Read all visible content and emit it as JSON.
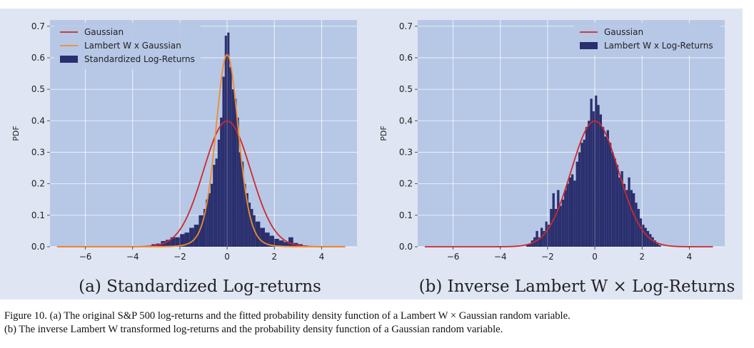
{
  "chart_data": [
    {
      "type": "histogram",
      "panel_label": "(a)",
      "subcaption": "Standardized Log-returns",
      "ylabel": "PDF",
      "xlabel": "",
      "xlim": [
        -7.5,
        5.5
      ],
      "ylim": [
        0,
        0.72
      ],
      "xticks": [
        -6,
        -4,
        -2,
        0,
        2,
        4
      ],
      "xtick_labels": [
        "−6",
        "−4",
        "−2",
        "0",
        "2",
        "4"
      ],
      "yticks": [
        0.0,
        0.1,
        0.2,
        0.3,
        0.4,
        0.5,
        0.6,
        0.7
      ],
      "ytick_labels": [
        "0.0",
        "0.1",
        "0.2",
        "0.3",
        "0.4",
        "0.5",
        "0.6",
        "0.7"
      ],
      "grid": true,
      "legend_position": "top-left",
      "series": [
        {
          "name": "Gaussian",
          "type": "line",
          "color": "#cc2a2a",
          "distribution": "normal",
          "mean": 0,
          "std": 1,
          "x_range": [
            -7.2,
            5.0
          ]
        },
        {
          "name": "Lambert W x Gaussian",
          "type": "line",
          "color": "#f28c28",
          "distribution": "lambert_w_gaussian",
          "peak": 0.61,
          "delta": 0.21,
          "x_range": [
            -7.2,
            5.0
          ]
        },
        {
          "name": "Standardized Log-Returns",
          "type": "histogram",
          "color": "#2a2f6e",
          "bins": [
            [
              -7.2,
              0.0
            ],
            [
              -3.8,
              0.002
            ],
            [
              -3.2,
              0.008
            ],
            [
              -3.0,
              0.01
            ],
            [
              -2.8,
              0.018
            ],
            [
              -2.6,
              0.022
            ],
            [
              -2.4,
              0.03
            ],
            [
              -2.2,
              0.03
            ],
            [
              -2.0,
              0.04
            ],
            [
              -1.8,
              0.045
            ],
            [
              -1.6,
              0.06
            ],
            [
              -1.4,
              0.07
            ],
            [
              -1.2,
              0.1
            ],
            [
              -1.0,
              0.12
            ],
            [
              -0.9,
              0.15
            ],
            [
              -0.8,
              0.17
            ],
            [
              -0.7,
              0.2
            ],
            [
              -0.6,
              0.26
            ],
            [
              -0.5,
              0.28
            ],
            [
              -0.4,
              0.34
            ],
            [
              -0.3,
              0.41
            ],
            [
              -0.2,
              0.54
            ],
            [
              -0.1,
              0.67
            ],
            [
              0.0,
              0.68
            ],
            [
              0.1,
              0.57
            ],
            [
              0.2,
              0.5
            ],
            [
              0.3,
              0.47
            ],
            [
              0.4,
              0.41
            ],
            [
              0.5,
              0.3
            ],
            [
              0.6,
              0.27
            ],
            [
              0.7,
              0.2
            ],
            [
              0.8,
              0.17
            ],
            [
              0.9,
              0.14
            ],
            [
              1.0,
              0.12
            ],
            [
              1.1,
              0.1
            ],
            [
              1.2,
              0.08
            ],
            [
              1.4,
              0.06
            ],
            [
              1.6,
              0.045
            ],
            [
              1.8,
              0.035
            ],
            [
              2.0,
              0.025
            ],
            [
              2.2,
              0.02
            ],
            [
              2.4,
              0.015
            ],
            [
              2.6,
              0.03
            ],
            [
              2.8,
              0.012
            ],
            [
              3.0,
              0.008
            ],
            [
              3.2,
              0.004
            ],
            [
              3.4,
              0.002
            ],
            [
              3.6,
              0.0
            ]
          ]
        }
      ]
    },
    {
      "type": "histogram",
      "panel_label": "(b)",
      "subcaption": "Inverse Lambert W × Log-Returns",
      "ylabel": "PDF",
      "xlabel": "",
      "xlim": [
        -7.5,
        5.5
      ],
      "ylim": [
        0,
        0.72
      ],
      "xticks": [
        -6,
        -4,
        -2,
        0,
        2,
        4
      ],
      "xtick_labels": [
        "−6",
        "−4",
        "−2",
        "0",
        "2",
        "4"
      ],
      "yticks": [
        0.0,
        0.1,
        0.2,
        0.3,
        0.4,
        0.5,
        0.6,
        0.7
      ],
      "ytick_labels": [
        "0.0",
        "0.1",
        "0.2",
        "0.3",
        "0.4",
        "0.5",
        "0.6",
        "0.7"
      ],
      "grid": true,
      "legend_position": "top-right",
      "series": [
        {
          "name": "Gaussian",
          "type": "line",
          "color": "#cc2a2a",
          "distribution": "normal",
          "mean": 0,
          "std": 1,
          "x_range": [
            -7.2,
            5.0
          ]
        },
        {
          "name": "Lambert W x Log-Returns",
          "type": "histogram",
          "color": "#2a2f6e",
          "bins": [
            [
              -2.9,
              0.008
            ],
            [
              -2.8,
              0.01
            ],
            [
              -2.7,
              0.02
            ],
            [
              -2.6,
              0.03
            ],
            [
              -2.5,
              0.05
            ],
            [
              -2.4,
              0.03
            ],
            [
              -2.3,
              0.06
            ],
            [
              -2.2,
              0.05
            ],
            [
              -2.1,
              0.08
            ],
            [
              -2.0,
              0.07
            ],
            [
              -1.9,
              0.12
            ],
            [
              -1.8,
              0.17
            ],
            [
              -1.7,
              0.12
            ],
            [
              -1.6,
              0.18
            ],
            [
              -1.5,
              0.13
            ],
            [
              -1.4,
              0.15
            ],
            [
              -1.3,
              0.18
            ],
            [
              -1.2,
              0.2
            ],
            [
              -1.1,
              0.22
            ],
            [
              -1.0,
              0.23
            ],
            [
              -0.9,
              0.21
            ],
            [
              -0.8,
              0.27
            ],
            [
              -0.7,
              0.3
            ],
            [
              -0.6,
              0.33
            ],
            [
              -0.5,
              0.34
            ],
            [
              -0.4,
              0.38
            ],
            [
              -0.3,
              0.4
            ],
            [
              -0.2,
              0.47
            ],
            [
              -0.1,
              0.43
            ],
            [
              0.0,
              0.48
            ],
            [
              0.1,
              0.45
            ],
            [
              0.2,
              0.42
            ],
            [
              0.3,
              0.38
            ],
            [
              0.4,
              0.35
            ],
            [
              0.5,
              0.37
            ],
            [
              0.6,
              0.33
            ],
            [
              0.7,
              0.3
            ],
            [
              0.8,
              0.28
            ],
            [
              0.9,
              0.26
            ],
            [
              1.0,
              0.22
            ],
            [
              1.1,
              0.24
            ],
            [
              1.2,
              0.2
            ],
            [
              1.3,
              0.18
            ],
            [
              1.4,
              0.22
            ],
            [
              1.5,
              0.18
            ],
            [
              1.6,
              0.17
            ],
            [
              1.7,
              0.14
            ],
            [
              1.8,
              0.12
            ],
            [
              1.9,
              0.09
            ],
            [
              2.0,
              0.07
            ],
            [
              2.1,
              0.06
            ],
            [
              2.2,
              0.05
            ],
            [
              2.3,
              0.04
            ],
            [
              2.4,
              0.03
            ],
            [
              2.5,
              0.02
            ],
            [
              2.6,
              0.01
            ],
            [
              2.7,
              0.005
            ],
            [
              2.8,
              0.0
            ]
          ]
        }
      ]
    }
  ],
  "caption": {
    "line1": "Figure 10.  (a) The original S&P 500 log-returns and the fitted probability density function of a Lambert W  ×  Gaussian random variable.",
    "line2": "(b) The inverse Lambert W transformed log-returns and the probability density function of a Gaussian random variable."
  },
  "colors": {
    "plot_bg": "#b7c7e6",
    "figure_bg": "#dfe5f3",
    "grid": "#ffffff",
    "bar": "#2a2f6e",
    "gaussian": "#cc2a2a",
    "lambert": "#f28c28"
  }
}
